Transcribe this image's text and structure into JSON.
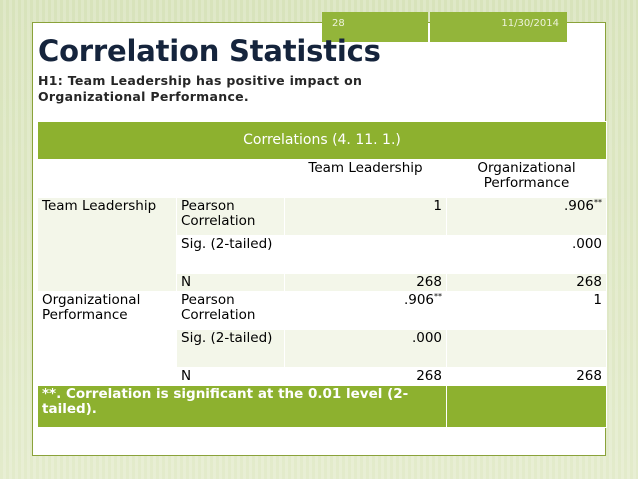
{
  "header": {
    "slide_number": "28",
    "date": "11/30/2014"
  },
  "title": "Correlation Statistics",
  "hypothesis": "H1:   Team Leadership has positive impact on Organizational Performance.",
  "table": {
    "caption": "Correlations (4. 11. 1.)",
    "col_headers": [
      "Team Leadership",
      "Organizational Performance"
    ],
    "groups": [
      {
        "name": "Team Leadership",
        "rows": [
          {
            "stat": "Pearson Correlation",
            "v1": "1",
            "v2": ".906",
            "v2_sup": "**"
          },
          {
            "stat": "Sig. (2-tailed)",
            "v1": "",
            "v2": ".000"
          },
          {
            "stat": "N",
            "v1": "268",
            "v2": "268"
          }
        ]
      },
      {
        "name": "Organizational Performance",
        "rows": [
          {
            "stat": "Pearson Correlation",
            "v1": ".906",
            "v1_sup": "**",
            "v2": "1"
          },
          {
            "stat": "Sig. (2-tailed)",
            "v1": ".000",
            "v2": ""
          },
          {
            "stat": "N",
            "v1": "268",
            "v2": "268"
          }
        ]
      }
    ],
    "footnote": "**. Correlation is significant at the 0.01 level (2-tailed)."
  },
  "colors": {
    "accent": "#8db12f",
    "title": "#15243c"
  }
}
